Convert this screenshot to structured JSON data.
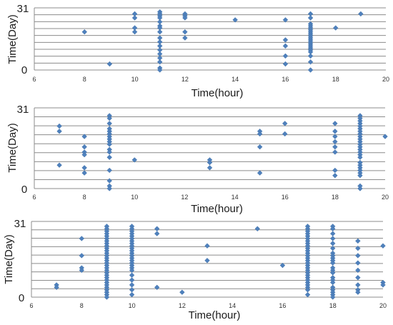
{
  "marker_color": "#4f81bd",
  "grid_color": "#8c8c8c",
  "chart_data": [
    {
      "type": "scatter",
      "xlabel": "Time(hour)",
      "ylabel": "Time(Day)",
      "xlim": [
        6,
        20
      ],
      "ylim": [
        0,
        31
      ],
      "x_ticks": [
        "6",
        "8",
        "10",
        "12",
        "14",
        "16",
        "18",
        "20"
      ],
      "y_ticks": [
        "0",
        "31"
      ],
      "grid": "horizontal",
      "points": [
        [
          8,
          19
        ],
        [
          9,
          3
        ],
        [
          10,
          28
        ],
        [
          10,
          26
        ],
        [
          10,
          21
        ],
        [
          10,
          19
        ],
        [
          11,
          29
        ],
        [
          11,
          28
        ],
        [
          11,
          27
        ],
        [
          11,
          26
        ],
        [
          11,
          24
        ],
        [
          11,
          22
        ],
        [
          11,
          21
        ],
        [
          11,
          19
        ],
        [
          11,
          16
        ],
        [
          11,
          14
        ],
        [
          11,
          12
        ],
        [
          11,
          10
        ],
        [
          11,
          8
        ],
        [
          11,
          6
        ],
        [
          11,
          4
        ],
        [
          11,
          1
        ],
        [
          11,
          0
        ],
        [
          12,
          28
        ],
        [
          12,
          27
        ],
        [
          12,
          26
        ],
        [
          12,
          19
        ],
        [
          12,
          16
        ],
        [
          14,
          25
        ],
        [
          16,
          25
        ],
        [
          16,
          15
        ],
        [
          16,
          12
        ],
        [
          16,
          7
        ],
        [
          16,
          3
        ],
        [
          17,
          28
        ],
        [
          17,
          26
        ],
        [
          17,
          23
        ],
        [
          17,
          22
        ],
        [
          17,
          21
        ],
        [
          17,
          20
        ],
        [
          17,
          19
        ],
        [
          17,
          18
        ],
        [
          17,
          17
        ],
        [
          17,
          16
        ],
        [
          17,
          15
        ],
        [
          17,
          14
        ],
        [
          17,
          13
        ],
        [
          17,
          12
        ],
        [
          17,
          11
        ],
        [
          17,
          10
        ],
        [
          17,
          9
        ],
        [
          17,
          7
        ],
        [
          17,
          4
        ],
        [
          17,
          0
        ],
        [
          18,
          21
        ],
        [
          19,
          28
        ]
      ]
    },
    {
      "type": "scatter",
      "xlabel": "Time(hour)",
      "ylabel": "Time(Day)",
      "xlim": [
        6,
        20
      ],
      "ylim": [
        0,
        31
      ],
      "x_ticks": [
        "6",
        "8",
        "10",
        "12",
        "14",
        "16",
        "18",
        "20"
      ],
      "y_ticks": [
        "0",
        "31"
      ],
      "grid": "horizontal",
      "points": [
        [
          7,
          24
        ],
        [
          7,
          22
        ],
        [
          7,
          9
        ],
        [
          8,
          20
        ],
        [
          8,
          16
        ],
        [
          8,
          14
        ],
        [
          8,
          13
        ],
        [
          8,
          8
        ],
        [
          8,
          6
        ],
        [
          9,
          28
        ],
        [
          9,
          27
        ],
        [
          9,
          25
        ],
        [
          9,
          23
        ],
        [
          9,
          22
        ],
        [
          9,
          21
        ],
        [
          9,
          20
        ],
        [
          9,
          19
        ],
        [
          9,
          18
        ],
        [
          9,
          17
        ],
        [
          9,
          15
        ],
        [
          9,
          14
        ],
        [
          9,
          12
        ],
        [
          9,
          7
        ],
        [
          9,
          3
        ],
        [
          9,
          1
        ],
        [
          9,
          0
        ],
        [
          10,
          11
        ],
        [
          13,
          11
        ],
        [
          13,
          10
        ],
        [
          13,
          8
        ],
        [
          15,
          22
        ],
        [
          15,
          21
        ],
        [
          15,
          16
        ],
        [
          15,
          6
        ],
        [
          16,
          25
        ],
        [
          16,
          21
        ],
        [
          18,
          25
        ],
        [
          18,
          22
        ],
        [
          18,
          20
        ],
        [
          18,
          18
        ],
        [
          18,
          16
        ],
        [
          18,
          14
        ],
        [
          18,
          7
        ],
        [
          18,
          5
        ],
        [
          19,
          28
        ],
        [
          19,
          27
        ],
        [
          19,
          26
        ],
        [
          19,
          25
        ],
        [
          19,
          24
        ],
        [
          19,
          23
        ],
        [
          19,
          22
        ],
        [
          19,
          21
        ],
        [
          19,
          20
        ],
        [
          19,
          19
        ],
        [
          19,
          18
        ],
        [
          19,
          17
        ],
        [
          19,
          16
        ],
        [
          19,
          15
        ],
        [
          19,
          14
        ],
        [
          19,
          13
        ],
        [
          19,
          12
        ],
        [
          19,
          10
        ],
        [
          19,
          9
        ],
        [
          19,
          8
        ],
        [
          19,
          7
        ],
        [
          19,
          6
        ],
        [
          19,
          5
        ],
        [
          19,
          1
        ],
        [
          19,
          0
        ],
        [
          20,
          20
        ]
      ]
    },
    {
      "type": "scatter",
      "xlabel": "Time(hour)",
      "ylabel": "Time(Day)",
      "xlim": [
        6,
        20
      ],
      "ylim": [
        0,
        31
      ],
      "x_ticks": [
        "6",
        "8",
        "10",
        "12",
        "14",
        "16",
        "18",
        "20"
      ],
      "y_ticks": [
        "0",
        "31"
      ],
      "grid": "horizontal",
      "points": [
        [
          7,
          5
        ],
        [
          7,
          4
        ],
        [
          8,
          24
        ],
        [
          8,
          17
        ],
        [
          8,
          12
        ],
        [
          8,
          11
        ],
        [
          9,
          29
        ],
        [
          9,
          28
        ],
        [
          9,
          27
        ],
        [
          9,
          26
        ],
        [
          9,
          25
        ],
        [
          9,
          24
        ],
        [
          9,
          23
        ],
        [
          9,
          22
        ],
        [
          9,
          21
        ],
        [
          9,
          20
        ],
        [
          9,
          19
        ],
        [
          9,
          18
        ],
        [
          9,
          17
        ],
        [
          9,
          16
        ],
        [
          9,
          15
        ],
        [
          9,
          14
        ],
        [
          9,
          13
        ],
        [
          9,
          12
        ],
        [
          9,
          11
        ],
        [
          9,
          10
        ],
        [
          9,
          9
        ],
        [
          9,
          8
        ],
        [
          9,
          7
        ],
        [
          9,
          6
        ],
        [
          9,
          5
        ],
        [
          9,
          4
        ],
        [
          9,
          3
        ],
        [
          9,
          2
        ],
        [
          9,
          1
        ],
        [
          9,
          0
        ],
        [
          10,
          29
        ],
        [
          10,
          28
        ],
        [
          10,
          27
        ],
        [
          10,
          26
        ],
        [
          10,
          25
        ],
        [
          10,
          24
        ],
        [
          10,
          23
        ],
        [
          10,
          22
        ],
        [
          10,
          21
        ],
        [
          10,
          20
        ],
        [
          10,
          19
        ],
        [
          10,
          18
        ],
        [
          10,
          17
        ],
        [
          10,
          16
        ],
        [
          10,
          15
        ],
        [
          10,
          14
        ],
        [
          10,
          13
        ],
        [
          10,
          12
        ],
        [
          10,
          11
        ],
        [
          10,
          9
        ],
        [
          10,
          7
        ],
        [
          10,
          5
        ],
        [
          10,
          3
        ],
        [
          10,
          1
        ],
        [
          11,
          28
        ],
        [
          11,
          26
        ],
        [
          11,
          4
        ],
        [
          12,
          2
        ],
        [
          13,
          21
        ],
        [
          13,
          15
        ],
        [
          15,
          28
        ],
        [
          16,
          13
        ],
        [
          17,
          29
        ],
        [
          17,
          28
        ],
        [
          17,
          27
        ],
        [
          17,
          26
        ],
        [
          17,
          25
        ],
        [
          17,
          24
        ],
        [
          17,
          23
        ],
        [
          17,
          22
        ],
        [
          17,
          21
        ],
        [
          17,
          20
        ],
        [
          17,
          19
        ],
        [
          17,
          18
        ],
        [
          17,
          17
        ],
        [
          17,
          16
        ],
        [
          17,
          15
        ],
        [
          17,
          14
        ],
        [
          17,
          13
        ],
        [
          17,
          12
        ],
        [
          17,
          11
        ],
        [
          17,
          10
        ],
        [
          17,
          9
        ],
        [
          17,
          8
        ],
        [
          17,
          7
        ],
        [
          17,
          6
        ],
        [
          17,
          5
        ],
        [
          17,
          4
        ],
        [
          17,
          3
        ],
        [
          17,
          1
        ],
        [
          18,
          29
        ],
        [
          18,
          28
        ],
        [
          18,
          26
        ],
        [
          18,
          24
        ],
        [
          18,
          22
        ],
        [
          18,
          20
        ],
        [
          18,
          18
        ],
        [
          18,
          17
        ],
        [
          18,
          16
        ],
        [
          18,
          15
        ],
        [
          18,
          14
        ],
        [
          18,
          12
        ],
        [
          18,
          11
        ],
        [
          18,
          10
        ],
        [
          18,
          8
        ],
        [
          18,
          7
        ],
        [
          18,
          6
        ],
        [
          18,
          4
        ],
        [
          18,
          3
        ],
        [
          18,
          2
        ],
        [
          18,
          1
        ],
        [
          18,
          0
        ],
        [
          19,
          23
        ],
        [
          19,
          20
        ],
        [
          19,
          17
        ],
        [
          19,
          14
        ],
        [
          19,
          11
        ],
        [
          19,
          8
        ],
        [
          19,
          5
        ],
        [
          19,
          3
        ],
        [
          19,
          2
        ],
        [
          20,
          21
        ],
        [
          20,
          6
        ],
        [
          20,
          5
        ]
      ]
    }
  ]
}
